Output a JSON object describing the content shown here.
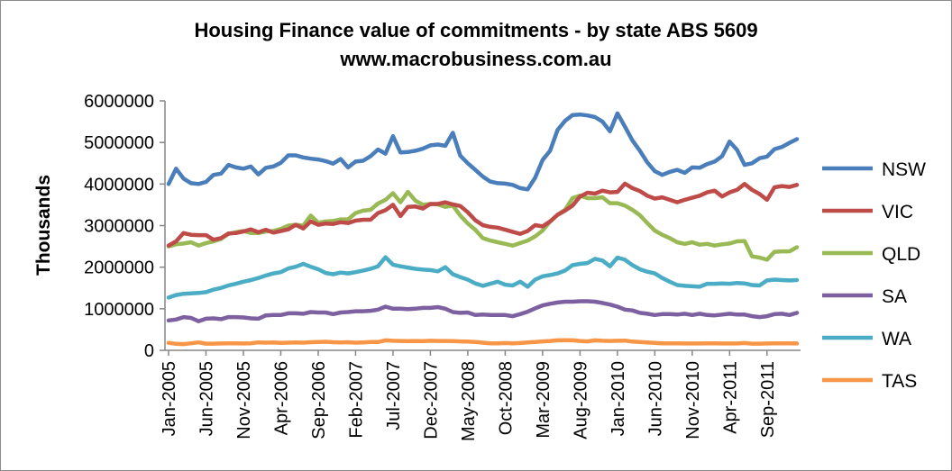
{
  "chart_data": {
    "type": "line",
    "title": "Housing Finance value of commitments - by state ABS 5609",
    "subtitle": "www.macrobusiness.com.au",
    "xlabel": "",
    "ylabel": "Thousands",
    "ylim": [
      0,
      6000000
    ],
    "yticks": [
      0,
      1000000,
      2000000,
      3000000,
      4000000,
      5000000,
      6000000
    ],
    "ytick_labels": [
      "0",
      "1000000",
      "2000000",
      "3000000",
      "4000000",
      "5000000",
      "6000000"
    ],
    "x_start": "Jan-2005",
    "x_end": "Sep-2011",
    "xtick_labels": [
      "Jan-2005",
      "Jun-2005",
      "Nov-2005",
      "Apr-2006",
      "Sep-2006",
      "Feb-2007",
      "Jul-2007",
      "Dec-2007",
      "May-2008",
      "Oct-2008",
      "Mar-2009",
      "Aug-2009",
      "Jan-2010",
      "Jun-2010",
      "Nov-2010",
      "Apr-2011",
      "Sep-2011"
    ],
    "grid": false,
    "legend_position": "right",
    "series": [
      {
        "name": "NSW",
        "color": "#4a7ebb",
        "values": [
          4000000,
          4370000,
          4130000,
          4020000,
          4000000,
          4050000,
          4220000,
          4250000,
          4460000,
          4400000,
          4370000,
          4420000,
          4230000,
          4390000,
          4420000,
          4510000,
          4690000,
          4690000,
          4640000,
          4610000,
          4590000,
          4550000,
          4490000,
          4600000,
          4400000,
          4540000,
          4560000,
          4670000,
          4830000,
          4730000,
          5150000,
          4760000,
          4770000,
          4800000,
          4850000,
          4930000,
          4950000,
          4920000,
          5230000,
          4680000,
          4500000,
          4340000,
          4180000,
          4060000,
          4020000,
          4010000,
          3980000,
          3900000,
          3870000,
          4150000,
          4580000,
          4800000,
          5300000,
          5520000,
          5660000,
          5670000,
          5650000,
          5610000,
          5500000,
          5270000,
          5700000,
          5380000,
          5050000,
          4800000,
          4520000,
          4310000,
          4220000,
          4290000,
          4340000,
          4270000,
          4400000,
          4390000,
          4480000,
          4540000,
          4670000,
          5020000,
          4820000,
          4460000,
          4500000,
          4620000,
          4660000,
          4840000,
          4890000,
          4990000,
          5080000
        ]
      },
      {
        "name": "VIC",
        "color": "#be4b48",
        "values": [
          2520000,
          2620000,
          2820000,
          2780000,
          2770000,
          2770000,
          2660000,
          2700000,
          2810000,
          2820000,
          2860000,
          2910000,
          2840000,
          2900000,
          2830000,
          2870000,
          2910000,
          3020000,
          2930000,
          3100000,
          3020000,
          3050000,
          3040000,
          3080000,
          3060000,
          3120000,
          3140000,
          3140000,
          3300000,
          3370000,
          3500000,
          3230000,
          3450000,
          3460000,
          3410000,
          3520000,
          3520000,
          3560000,
          3510000,
          3470000,
          3320000,
          3130000,
          3010000,
          2970000,
          2950000,
          2900000,
          2850000,
          2800000,
          2870000,
          3010000,
          2980000,
          3100000,
          3260000,
          3360000,
          3480000,
          3700000,
          3790000,
          3770000,
          3840000,
          3800000,
          3810000,
          4010000,
          3900000,
          3830000,
          3720000,
          3650000,
          3680000,
          3620000,
          3560000,
          3620000,
          3670000,
          3720000,
          3800000,
          3840000,
          3700000,
          3800000,
          3860000,
          4000000,
          3860000,
          3760000,
          3620000,
          3920000,
          3950000,
          3930000,
          3980000
        ]
      },
      {
        "name": "QLD",
        "color": "#98b954",
        "values": [
          2500000,
          2550000,
          2570000,
          2600000,
          2520000,
          2580000,
          2620000,
          2680000,
          2800000,
          2840000,
          2870000,
          2820000,
          2820000,
          2860000,
          2870000,
          2920000,
          3000000,
          3020000,
          3000000,
          3240000,
          3070000,
          3100000,
          3110000,
          3150000,
          3150000,
          3300000,
          3360000,
          3380000,
          3530000,
          3620000,
          3780000,
          3560000,
          3810000,
          3600000,
          3500000,
          3520000,
          3510000,
          3450000,
          3480000,
          3240000,
          3050000,
          2900000,
          2700000,
          2640000,
          2600000,
          2560000,
          2520000,
          2580000,
          2640000,
          2740000,
          2880000,
          3100000,
          3260000,
          3380000,
          3660000,
          3720000,
          3660000,
          3660000,
          3680000,
          3540000,
          3540000,
          3480000,
          3380000,
          3250000,
          3060000,
          2880000,
          2780000,
          2700000,
          2600000,
          2560000,
          2600000,
          2540000,
          2560000,
          2520000,
          2550000,
          2570000,
          2620000,
          2630000,
          2260000,
          2230000,
          2180000,
          2370000,
          2380000,
          2380000,
          2480000
        ]
      },
      {
        "name": "SA",
        "color": "#7d60a0",
        "values": [
          720000,
          740000,
          800000,
          780000,
          700000,
          760000,
          770000,
          750000,
          800000,
          800000,
          790000,
          770000,
          760000,
          840000,
          850000,
          850000,
          890000,
          890000,
          880000,
          920000,
          910000,
          910000,
          870000,
          910000,
          920000,
          940000,
          940000,
          950000,
          980000,
          1050000,
          1000000,
          1000000,
          990000,
          1000000,
          1020000,
          1020000,
          1040000,
          1000000,
          920000,
          900000,
          910000,
          850000,
          860000,
          850000,
          850000,
          850000,
          820000,
          870000,
          930000,
          1010000,
          1080000,
          1120000,
          1150000,
          1170000,
          1170000,
          1180000,
          1180000,
          1170000,
          1140000,
          1100000,
          1050000,
          980000,
          960000,
          900000,
          880000,
          850000,
          870000,
          870000,
          860000,
          880000,
          850000,
          880000,
          850000,
          840000,
          860000,
          880000,
          860000,
          860000,
          820000,
          800000,
          820000,
          870000,
          880000,
          850000,
          900000
        ]
      },
      {
        "name": "WA",
        "color": "#4bacc6",
        "values": [
          1270000,
          1330000,
          1360000,
          1370000,
          1380000,
          1400000,
          1460000,
          1500000,
          1560000,
          1600000,
          1650000,
          1690000,
          1740000,
          1800000,
          1850000,
          1880000,
          1970000,
          2010000,
          2080000,
          2010000,
          1950000,
          1860000,
          1830000,
          1870000,
          1850000,
          1880000,
          1920000,
          1960000,
          2020000,
          2240000,
          2060000,
          2020000,
          1990000,
          1960000,
          1940000,
          1930000,
          1900000,
          2000000,
          1830000,
          1760000,
          1700000,
          1610000,
          1550000,
          1600000,
          1650000,
          1580000,
          1560000,
          1650000,
          1530000,
          1700000,
          1780000,
          1810000,
          1850000,
          1920000,
          2050000,
          2080000,
          2100000,
          2200000,
          2160000,
          2020000,
          2230000,
          2180000,
          2050000,
          1950000,
          1890000,
          1850000,
          1740000,
          1650000,
          1570000,
          1550000,
          1540000,
          1530000,
          1600000,
          1600000,
          1610000,
          1600000,
          1620000,
          1610000,
          1570000,
          1560000,
          1680000,
          1700000,
          1690000,
          1680000,
          1690000
        ]
      },
      {
        "name": "TAS",
        "color": "#f79646",
        "values": [
          180000,
          155000,
          150000,
          170000,
          190000,
          160000,
          160000,
          165000,
          170000,
          170000,
          165000,
          170000,
          190000,
          185000,
          190000,
          180000,
          185000,
          190000,
          185000,
          195000,
          200000,
          205000,
          195000,
          190000,
          195000,
          185000,
          190000,
          200000,
          200000,
          240000,
          230000,
          225000,
          220000,
          225000,
          220000,
          230000,
          225000,
          225000,
          220000,
          215000,
          210000,
          200000,
          185000,
          170000,
          170000,
          175000,
          170000,
          175000,
          190000,
          200000,
          215000,
          225000,
          240000,
          245000,
          240000,
          225000,
          215000,
          240000,
          230000,
          225000,
          230000,
          235000,
          210000,
          200000,
          190000,
          180000,
          170000,
          170000,
          170000,
          165000,
          165000,
          165000,
          170000,
          170000,
          165000,
          165000,
          165000,
          175000,
          160000,
          160000,
          165000,
          170000,
          170000,
          170000,
          165000
        ]
      }
    ]
  }
}
